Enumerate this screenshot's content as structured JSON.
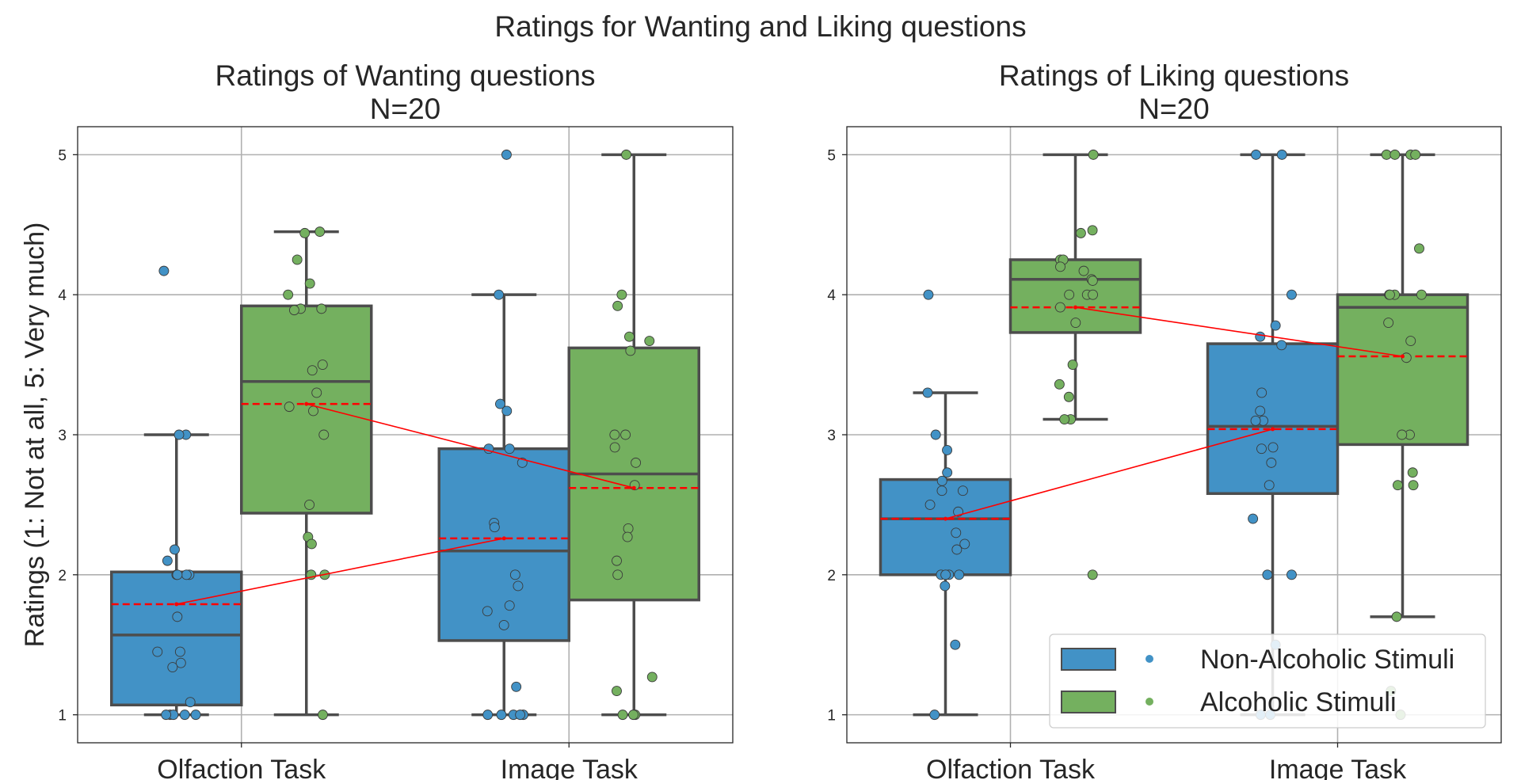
{
  "suptitle": "Ratings for Wanting and Liking questions",
  "colors": {
    "non_alcoholic": "#4292c6",
    "alcoholic": "#74b05f",
    "mean": "#ff0000",
    "box_edge": "#4d4d4d",
    "grid": "#b0b0b0"
  },
  "legend": {
    "placement": "lower-right",
    "items": [
      {
        "label": "Non-Alcoholic Stimuli",
        "color": "#4292c6"
      },
      {
        "label": "Alcoholic Stimuli",
        "color": "#74b05f"
      }
    ]
  },
  "chart_data": [
    {
      "type": "box",
      "title": "Ratings of Wanting questions",
      "subtitle": "N=20",
      "xlabel": "",
      "ylabel": "Ratings (1: Not at all, 5: Very much)",
      "ylim": [
        0.8,
        5.2
      ],
      "yticks": [
        1,
        2,
        3,
        4,
        5
      ],
      "categories": [
        "Olfaction Task",
        "Image Task"
      ],
      "grid": true,
      "series": [
        {
          "name": "Non-Alcoholic Stimuli",
          "boxes": [
            {
              "whisker_low": 1.0,
              "q1": 1.07,
              "median": 1.57,
              "q3": 2.02,
              "whisker_high": 3.0,
              "mean": 1.79,
              "points": [
                4.17,
                3.0,
                3.0,
                2.18,
                2.1,
                2.0,
                2.0,
                2.0,
                2.0,
                1.7,
                1.45,
                1.45,
                1.37,
                1.34,
                1.09,
                1.0,
                1.0,
                1.0,
                1.0,
                1.0
              ]
            },
            {
              "whisker_low": 1.0,
              "q1": 1.53,
              "median": 2.17,
              "q3": 2.9,
              "whisker_high": 4.0,
              "mean": 2.26,
              "points": [
                5.0,
                4.0,
                3.22,
                3.17,
                2.9,
                2.9,
                2.8,
                2.37,
                2.34,
                2.0,
                1.92,
                1.78,
                1.74,
                1.64,
                1.2,
                1.0,
                1.0,
                1.0,
                1.0,
                1.0
              ]
            }
          ]
        },
        {
          "name": "Alcoholic Stimuli",
          "boxes": [
            {
              "whisker_low": 1.0,
              "q1": 2.44,
              "median": 3.38,
              "q3": 3.92,
              "whisker_high": 4.45,
              "mean": 3.22,
              "points": [
                4.45,
                4.44,
                4.25,
                4.08,
                4.0,
                3.9,
                3.9,
                3.89,
                3.5,
                3.46,
                3.3,
                3.2,
                3.17,
                3.0,
                2.5,
                2.27,
                2.22,
                2.0,
                2.0,
                1.0
              ]
            },
            {
              "whisker_low": 1.0,
              "q1": 1.82,
              "median": 2.72,
              "q3": 3.62,
              "whisker_high": 5.0,
              "mean": 2.62,
              "points": [
                5.0,
                4.0,
                3.92,
                3.7,
                3.67,
                3.6,
                3.0,
                3.0,
                2.91,
                2.8,
                2.64,
                2.33,
                2.27,
                2.1,
                2.0,
                1.27,
                1.17,
                1.0,
                1.0,
                1.0
              ]
            }
          ]
        }
      ]
    },
    {
      "type": "box",
      "title": "Ratings of Liking questions",
      "subtitle": "N=20",
      "xlabel": "",
      "ylabel": "",
      "ylim": [
        0.8,
        5.2
      ],
      "yticks": [
        1,
        2,
        3,
        4,
        5
      ],
      "categories": [
        "Olfaction Task",
        "Image Task"
      ],
      "grid": true,
      "series": [
        {
          "name": "Non-Alcoholic Stimuli",
          "boxes": [
            {
              "whisker_low": 1.0,
              "q1": 2.0,
              "median": 2.4,
              "q3": 2.68,
              "whisker_high": 3.3,
              "mean": 2.4,
              "points": [
                4.0,
                3.3,
                3.0,
                2.89,
                2.73,
                2.67,
                2.6,
                2.6,
                2.5,
                2.45,
                2.3,
                2.22,
                2.18,
                2.0,
                2.0,
                2.0,
                2.0,
                1.92,
                1.5,
                1.0
              ]
            },
            {
              "whisker_low": 1.0,
              "q1": 2.58,
              "median": 3.06,
              "q3": 3.65,
              "whisker_high": 5.0,
              "mean": 3.04,
              "points": [
                5.0,
                5.0,
                4.0,
                3.78,
                3.7,
                3.64,
                3.3,
                3.17,
                3.1,
                3.1,
                2.91,
                2.9,
                2.8,
                2.64,
                2.4,
                2.0,
                2.0,
                1.5,
                1.0,
                1.0
              ]
            }
          ]
        },
        {
          "name": "Alcoholic Stimuli",
          "boxes": [
            {
              "whisker_low": 3.11,
              "q1": 3.73,
              "median": 4.11,
              "q3": 4.25,
              "whisker_high": 5.0,
              "mean": 3.91,
              "points": [
                5.0,
                4.46,
                4.44,
                4.25,
                4.25,
                4.2,
                4.17,
                4.11,
                4.1,
                4.0,
                4.0,
                4.0,
                3.91,
                3.8,
                3.5,
                3.36,
                3.27,
                3.11,
                3.11,
                2.0
              ]
            },
            {
              "whisker_low": 1.7,
              "q1": 2.93,
              "median": 3.91,
              "q3": 4.0,
              "whisker_high": 5.0,
              "mean": 3.56,
              "points": [
                5.0,
                5.0,
                5.0,
                5.0,
                4.33,
                4.0,
                4.0,
                4.0,
                4.0,
                3.8,
                3.67,
                3.55,
                3.0,
                3.0,
                2.73,
                2.64,
                2.64,
                1.7,
                1.17,
                1.0
              ]
            }
          ]
        }
      ]
    }
  ]
}
